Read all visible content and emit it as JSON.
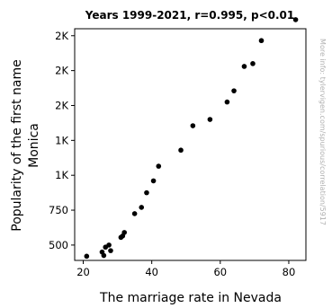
{
  "chart_data": {
    "type": "scatter",
    "title": "Years 1999-2021, r=0.995, p<0.01",
    "xlabel": "The marriage rate in Nevada",
    "ylabel_lines": [
      "Popularity of the first name",
      "Monica"
    ],
    "watermark": "More info: tylervigen.com/spurious/correlation/5917",
    "xlim": [
      17.5,
      85
    ],
    "ylim": [
      390,
      2050
    ],
    "x_ticks": [
      {
        "value": 20,
        "label": "20"
      },
      {
        "value": 40,
        "label": "40"
      },
      {
        "value": 60,
        "label": "60"
      },
      {
        "value": 80,
        "label": "80"
      }
    ],
    "y_ticks": [
      {
        "value": 500,
        "label": "500"
      },
      {
        "value": 750,
        "label": "750"
      },
      {
        "value": 1000,
        "label": "1K"
      },
      {
        "value": 1250,
        "label": "1K"
      },
      {
        "value": 1500,
        "label": "2K"
      },
      {
        "value": 1750,
        "label": "2K"
      },
      {
        "value": 2000,
        "label": "2K"
      }
    ],
    "grid": false,
    "marker_color": "#000000",
    "points": [
      {
        "x": 21,
        "y": 420
      },
      {
        "x": 25.5,
        "y": 450
      },
      {
        "x": 26,
        "y": 425
      },
      {
        "x": 26.5,
        "y": 485
      },
      {
        "x": 27.5,
        "y": 500
      },
      {
        "x": 28,
        "y": 460
      },
      {
        "x": 31,
        "y": 555
      },
      {
        "x": 31.5,
        "y": 565
      },
      {
        "x": 32,
        "y": 590
      },
      {
        "x": 35,
        "y": 725
      },
      {
        "x": 37,
        "y": 770
      },
      {
        "x": 38.5,
        "y": 875
      },
      {
        "x": 40.5,
        "y": 960
      },
      {
        "x": 42,
        "y": 1065
      },
      {
        "x": 48.5,
        "y": 1180
      },
      {
        "x": 52,
        "y": 1355
      },
      {
        "x": 57,
        "y": 1400
      },
      {
        "x": 62,
        "y": 1525
      },
      {
        "x": 64,
        "y": 1605
      },
      {
        "x": 67,
        "y": 1780
      },
      {
        "x": 69.5,
        "y": 1800
      },
      {
        "x": 72,
        "y": 1965
      },
      {
        "x": 82,
        "y": 2115
      }
    ]
  }
}
